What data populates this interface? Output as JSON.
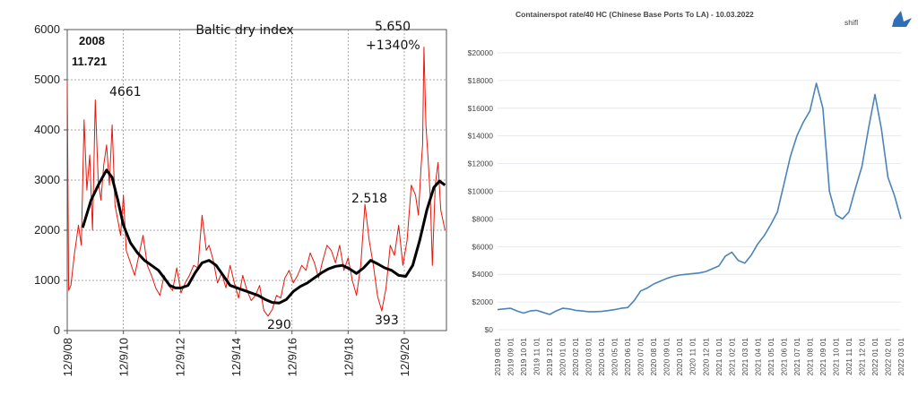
{
  "chart_data": [
    {
      "type": "line",
      "title": "Baltic dry index",
      "ylim": [
        0,
        6000
      ],
      "y_ticks": [
        "0",
        "1000",
        "2000",
        "3000",
        "4000",
        "5000",
        "6000"
      ],
      "x_ticks": [
        "12/9/08",
        "12/9/10",
        "12/9/12",
        "12/9/14",
        "12/9/16",
        "12/9/18",
        "12/9/20"
      ],
      "grid": "dashed vertical and horizontal",
      "colors": {
        "daily": "#e8160c",
        "average": "#000000"
      },
      "annotations": [
        {
          "id": "a2008",
          "text": "2008"
        },
        {
          "id": "a11721",
          "text": "11.721"
        },
        {
          "id": "a4661",
          "text": "4661"
        },
        {
          "id": "a5650",
          "text": "5.650"
        },
        {
          "id": "a1340",
          "text": "+1340%"
        },
        {
          "id": "a2518",
          "text": "2.518"
        },
        {
          "id": "a290",
          "text": "290"
        },
        {
          "id": "a393",
          "text": "393"
        }
      ],
      "series": [
        {
          "style": "daily",
          "x": [
            2008.95,
            2009.0,
            2009.08,
            2009.2,
            2009.35,
            2009.45,
            2009.55,
            2009.65,
            2009.75,
            2009.85,
            2009.95,
            2010.05,
            2010.15,
            2010.25,
            2010.35,
            2010.45,
            2010.55,
            2010.65,
            2010.75,
            2010.85,
            2010.95,
            2011.05,
            2011.2,
            2011.35,
            2011.5,
            2011.65,
            2011.8,
            2011.95,
            2012.1,
            2012.25,
            2012.4,
            2012.55,
            2012.7,
            2012.85,
            2013.0,
            2013.15,
            2013.3,
            2013.45,
            2013.6,
            2013.75,
            2013.9,
            2014.0,
            2014.15,
            2014.3,
            2014.45,
            2014.6,
            2014.75,
            2014.9,
            2015.05,
            2015.2,
            2015.35,
            2015.5,
            2015.65,
            2015.8,
            2015.95,
            2016.1,
            2016.25,
            2016.4,
            2016.55,
            2016.7,
            2016.85,
            2017.0,
            2017.15,
            2017.3,
            2017.45,
            2017.6,
            2017.75,
            2017.9,
            2018.05,
            2018.2,
            2018.35,
            2018.5,
            2018.65,
            2018.8,
            2018.95,
            2019.1,
            2019.25,
            2019.4,
            2019.55,
            2019.7,
            2019.85,
            2020.0,
            2020.15,
            2020.3,
            2020.45,
            2020.6,
            2020.75,
            2020.9,
            2021.05,
            2021.2,
            2021.35,
            2021.45,
            2021.55,
            2021.6,
            2021.65,
            2021.72,
            2021.8,
            2021.88,
            2021.95,
            2022.05,
            2022.15,
            2022.25,
            2022.4
          ],
          "y": [
            4950,
            800,
            900,
            1500,
            2100,
            1700,
            4200,
            2800,
            3500,
            2000,
            4600,
            3000,
            2600,
            3300,
            3700,
            2900,
            4100,
            2500,
            2200,
            1900,
            2700,
            1600,
            1350,
            1100,
            1500,
            1900,
            1300,
            1100,
            850,
            700,
            1100,
            900,
            800,
            1250,
            750,
            950,
            1100,
            1300,
            1250,
            2300,
            1600,
            1700,
            1400,
            950,
            1150,
            850,
            1300,
            950,
            650,
            1100,
            800,
            600,
            700,
            900,
            400,
            290,
            420,
            700,
            650,
            1050,
            1200,
            950,
            1100,
            1300,
            1200,
            1550,
            1350,
            1050,
            1400,
            1700,
            1600,
            1350,
            1700,
            1200,
            1450,
            1000,
            700,
            1300,
            2518,
            1800,
            1300,
            680,
            393,
            850,
            1700,
            1500,
            2100,
            1300,
            1800,
            2900,
            2700,
            2300,
            3300,
            3700,
            5650,
            4100,
            3400,
            2600,
            1300,
            2900,
            3350,
            2400,
            2000
          ]
        },
        {
          "style": "average",
          "x": [
            2009.5,
            2009.8,
            2010.1,
            2010.35,
            2010.55,
            2010.75,
            2010.95,
            2011.2,
            2011.45,
            2011.7,
            2011.95,
            2012.2,
            2012.4,
            2012.6,
            2012.8,
            2013.0,
            2013.25,
            2013.5,
            2013.75,
            2014.0,
            2014.25,
            2014.5,
            2014.75,
            2015.0,
            2015.25,
            2015.5,
            2015.75,
            2016.0,
            2016.25,
            2016.5,
            2016.75,
            2017.0,
            2017.25,
            2017.5,
            2017.75,
            2018.0,
            2018.25,
            2018.5,
            2018.75,
            2019.0,
            2019.25,
            2019.5,
            2019.75,
            2020.0,
            2020.25,
            2020.5,
            2020.75,
            2021.0,
            2021.25,
            2021.5,
            2021.75,
            2022.0,
            2022.2,
            2022.4
          ],
          "y": [
            2050,
            2600,
            2950,
            3200,
            3050,
            2600,
            2100,
            1750,
            1550,
            1400,
            1300,
            1200,
            1050,
            900,
            850,
            850,
            900,
            1150,
            1350,
            1400,
            1300,
            1100,
            900,
            850,
            800,
            750,
            700,
            620,
            560,
            550,
            620,
            780,
            880,
            950,
            1050,
            1150,
            1230,
            1280,
            1300,
            1230,
            1140,
            1250,
            1400,
            1330,
            1250,
            1200,
            1100,
            1080,
            1300,
            1800,
            2400,
            2850,
            2980,
            2900
          ]
        }
      ]
    },
    {
      "type": "line",
      "title": "Containerspot rate/40 HC (Chinese Base Ports To LA) - 10.03.2022",
      "brand": "shifl",
      "ylim": [
        0,
        20000
      ],
      "y_ticks": [
        "$0",
        "$2000",
        "$4000",
        "$6000",
        "$8000",
        "$10000",
        "$12000",
        "$14000",
        "$16000",
        "$18000",
        "$20000"
      ],
      "categories": [
        "2019 08 01",
        "2019 09 01",
        "2019 10 01",
        "2019 11 01",
        "2019 12 01",
        "2020 01 01",
        "2020 02 01",
        "2020 03 01",
        "2020 04 01",
        "2020 05 01",
        "2020 06 01",
        "2020 07 01",
        "2020 08 01",
        "2020 09 01",
        "2020 10 01",
        "2020 11 01",
        "2020 12 01",
        "2021 01 01",
        "2021 02 01",
        "2021 03 01",
        "2021 04 01",
        "2021 05 01",
        "2021 06 01",
        "2021 07 01",
        "2021 08 01",
        "2021 09 01",
        "2021 10 01",
        "2021 11 01",
        "2021 12 01",
        "2022 01 01",
        "2022 02 01",
        "2022 03 01"
      ],
      "colors": {
        "line": "#4a84b8"
      },
      "series": [
        {
          "x": [
            0,
            0.5,
            1,
            1.5,
            2,
            2.5,
            3,
            3.5,
            4,
            4.5,
            5,
            5.5,
            6,
            6.5,
            7,
            7.5,
            8,
            8.5,
            9,
            9.5,
            10,
            10.5,
            11,
            11.5,
            12,
            12.5,
            13,
            13.5,
            14,
            14.5,
            15,
            15.5,
            16,
            16.5,
            17,
            17.5,
            18,
            18.5,
            19,
            19.5,
            20,
            20.5,
            21,
            21.5,
            22,
            22.5,
            23,
            23.5,
            24,
            24.5,
            25,
            25.5,
            26,
            26.5,
            27,
            27.5,
            28,
            28.5,
            29,
            29.5,
            30,
            30.5,
            31
          ],
          "y": [
            1450,
            1500,
            1550,
            1350,
            1200,
            1350,
            1400,
            1250,
            1100,
            1350,
            1550,
            1500,
            1400,
            1350,
            1300,
            1300,
            1320,
            1380,
            1450,
            1550,
            1600,
            2100,
            2800,
            3000,
            3300,
            3500,
            3700,
            3850,
            3950,
            4000,
            4050,
            4100,
            4200,
            4400,
            4600,
            5300,
            5600,
            5000,
            4800,
            5400,
            6200,
            6800,
            7600,
            8500,
            10500,
            12500,
            14000,
            15000,
            15800,
            17800,
            16000,
            10000,
            8300,
            8000,
            8500,
            10200,
            11800,
            14500,
            17000,
            14500,
            11000,
            9700,
            8000
          ]
        }
      ]
    }
  ]
}
